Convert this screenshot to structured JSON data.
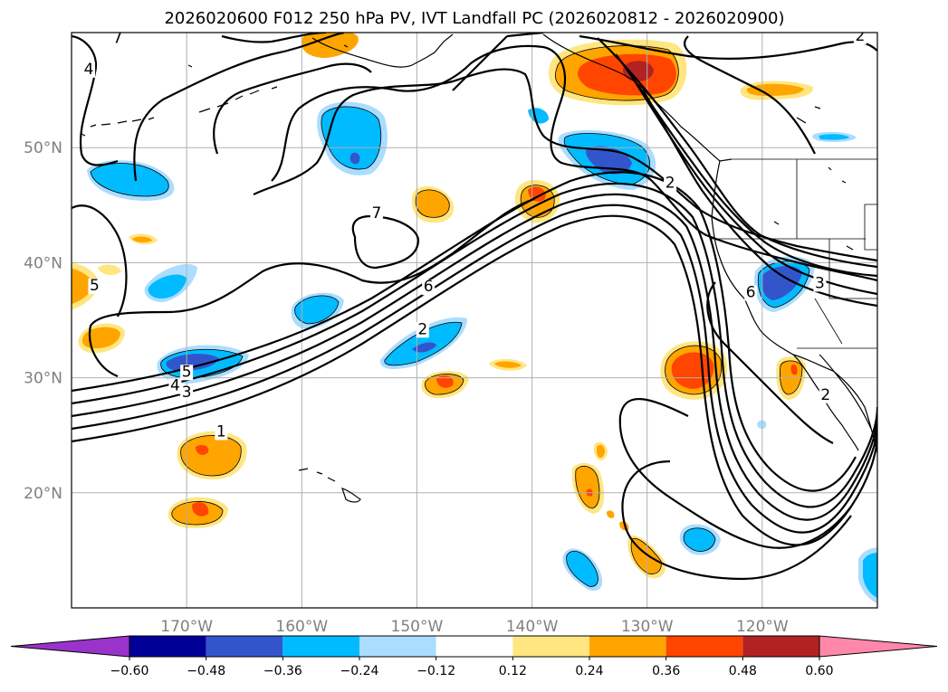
{
  "title": "2026020600 F012 250 hPa PV, IVT Landfall PC (2026020812 - 2026020900)",
  "lat_labels": [
    {
      "text": "50°N",
      "lat": 50
    },
    {
      "text": "40°N",
      "lat": 40
    },
    {
      "text": "30°N",
      "lat": 30
    },
    {
      "text": "20°N",
      "lat": 20
    }
  ],
  "lon_labels": [
    {
      "text": "170°W",
      "lon": -170
    },
    {
      "text": "160°W",
      "lon": -160
    },
    {
      "text": "150°W",
      "lon": -150
    },
    {
      "text": "140°W",
      "lon": -140
    },
    {
      "text": "130°W",
      "lon": -130
    },
    {
      "text": "120°W",
      "lon": -120
    }
  ],
  "map_extent": {
    "lon_min": -180,
    "lon_max": -110,
    "lat_min": 10,
    "lat_max": 60
  },
  "contour_labels": [
    {
      "text": "7",
      "lon": -176,
      "lat": 59.1
    },
    {
      "text": "4",
      "lon": -178.5,
      "lat": 56.4
    },
    {
      "text": "7",
      "lon": -153.5,
      "lat": 43.9
    },
    {
      "text": "5",
      "lon": -178,
      "lat": 37.6
    },
    {
      "text": "6",
      "lon": -149,
      "lat": 37.5
    },
    {
      "text": "2",
      "lon": -149.5,
      "lat": 33.8
    },
    {
      "text": "5",
      "lon": -170,
      "lat": 30.1
    },
    {
      "text": "4",
      "lon": -171,
      "lat": 28.9
    },
    {
      "text": "3",
      "lon": -170,
      "lat": 28.3
    },
    {
      "text": "1",
      "lon": -167,
      "lat": 24.9
    },
    {
      "text": "2",
      "lon": -111.5,
      "lat": 59.3
    },
    {
      "text": "2",
      "lon": -128,
      "lat": 46.5
    },
    {
      "text": "6",
      "lon": -121,
      "lat": 37
    },
    {
      "text": "3",
      "lon": -115,
      "lat": 37.8
    },
    {
      "text": "2",
      "lon": -114.5,
      "lat": 28.1
    }
  ],
  "colorbar": {
    "ticks": [
      "−0.60",
      "−0.48",
      "−0.36",
      "−0.24",
      "−0.12",
      "0.12",
      "0.24",
      "0.36",
      "0.48",
      "0.60"
    ],
    "colors": [
      "#9933cc",
      "#000099",
      "#3355cc",
      "#00bbff",
      "#aaddff",
      "#ffffff",
      "#ffe680",
      "#ffa500",
      "#ff4500",
      "#b22222",
      "#ff88aa"
    ]
  },
  "fill_colors": {
    "neg_light": "#aaddff",
    "neg_med": "#00bbff",
    "neg_dark": "#3355cc",
    "pos_light": "#ffe680",
    "pos_med": "#ffa500",
    "pos_dark": "#ff4500",
    "pos_darker": "#b22222"
  }
}
